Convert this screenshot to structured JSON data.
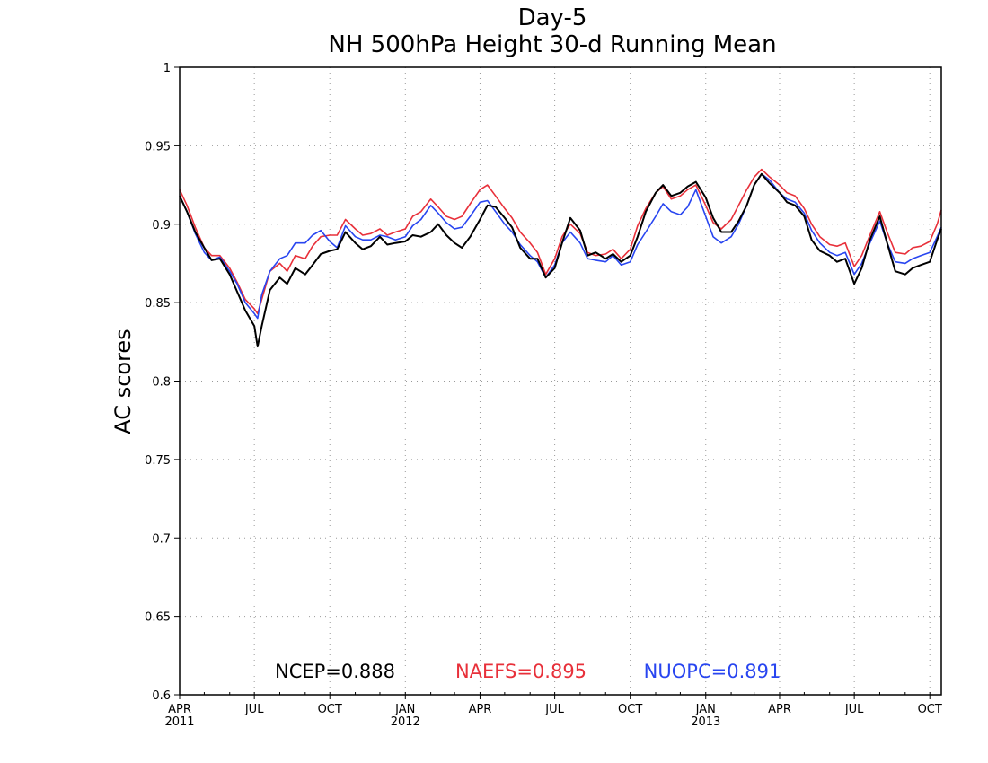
{
  "chart_data": {
    "type": "line",
    "title": "Day-5",
    "subtitle": "NH 500hPa Height 30-d Running Mean",
    "ylabel": "AC scores",
    "xlabel": "",
    "ylim": [
      0.6,
      1.0
    ],
    "xlim": [
      "2011-04-01",
      "2013-10-15"
    ],
    "grid": true,
    "yticks": [
      {
        "value": 0.6,
        "label": "0.6"
      },
      {
        "value": 0.65,
        "label": "0.65"
      },
      {
        "value": 0.7,
        "label": "0.7"
      },
      {
        "value": 0.75,
        "label": "0.75"
      },
      {
        "value": 0.8,
        "label": "0.8"
      },
      {
        "value": 0.85,
        "label": "0.85"
      },
      {
        "value": 0.9,
        "label": "0.9"
      },
      {
        "value": 0.95,
        "label": "0.95"
      },
      {
        "value": 1.0,
        "label": "1"
      }
    ],
    "xticks": [
      {
        "date": "2011-04-01",
        "label": "APR",
        "year": "2011"
      },
      {
        "date": "2011-07-01",
        "label": "JUL",
        "year": ""
      },
      {
        "date": "2011-10-01",
        "label": "OCT",
        "year": ""
      },
      {
        "date": "2012-01-01",
        "label": "JAN",
        "year": "2012"
      },
      {
        "date": "2012-04-01",
        "label": "APR",
        "year": ""
      },
      {
        "date": "2012-07-01",
        "label": "JUL",
        "year": ""
      },
      {
        "date": "2012-10-01",
        "label": "OCT",
        "year": ""
      },
      {
        "date": "2013-01-01",
        "label": "JAN",
        "year": "2013"
      },
      {
        "date": "2013-04-01",
        "label": "APR",
        "year": ""
      },
      {
        "date": "2013-07-01",
        "label": "JUL",
        "year": ""
      },
      {
        "date": "2013-10-01",
        "label": "OCT",
        "year": ""
      }
    ],
    "legend_placement": "bottom",
    "series": [
      {
        "name": "NCEP",
        "legend_label": "NCEP=0.888",
        "color": "#000000",
        "x": [
          "2011-04-01",
          "2011-04-10",
          "2011-04-20",
          "2011-05-01",
          "2011-05-10",
          "2011-05-20",
          "2011-06-01",
          "2011-06-10",
          "2011-06-20",
          "2011-07-01",
          "2011-07-05",
          "2011-07-10",
          "2011-07-20",
          "2011-08-01",
          "2011-08-10",
          "2011-08-20",
          "2011-09-01",
          "2011-09-10",
          "2011-09-20",
          "2011-10-01",
          "2011-10-10",
          "2011-10-20",
          "2011-11-01",
          "2011-11-10",
          "2011-11-20",
          "2011-12-01",
          "2011-12-10",
          "2011-12-20",
          "2012-01-01",
          "2012-01-10",
          "2012-01-20",
          "2012-02-01",
          "2012-02-10",
          "2012-02-20",
          "2012-03-01",
          "2012-03-10",
          "2012-03-20",
          "2012-04-01",
          "2012-04-10",
          "2012-04-20",
          "2012-05-01",
          "2012-05-10",
          "2012-05-20",
          "2012-06-01",
          "2012-06-10",
          "2012-06-20",
          "2012-07-01",
          "2012-07-10",
          "2012-07-20",
          "2012-08-01",
          "2012-08-10",
          "2012-08-20",
          "2012-09-01",
          "2012-09-10",
          "2012-09-20",
          "2012-10-01",
          "2012-10-10",
          "2012-10-20",
          "2012-11-01",
          "2012-11-10",
          "2012-11-20",
          "2012-12-01",
          "2012-12-10",
          "2012-12-20",
          "2013-01-01",
          "2013-01-10",
          "2013-01-20",
          "2013-02-01",
          "2013-02-10",
          "2013-02-20",
          "2013-03-01",
          "2013-03-10",
          "2013-03-20",
          "2013-04-01",
          "2013-04-10",
          "2013-04-20",
          "2013-05-01",
          "2013-05-10",
          "2013-05-20",
          "2013-06-01",
          "2013-06-10",
          "2013-06-20",
          "2013-07-01",
          "2013-07-10",
          "2013-07-20",
          "2013-08-01",
          "2013-08-10",
          "2013-08-20",
          "2013-09-01",
          "2013-09-10",
          "2013-09-20",
          "2013-10-01",
          "2013-10-10",
          "2013-10-15"
        ],
        "y": [
          0.918,
          0.908,
          0.895,
          0.885,
          0.877,
          0.878,
          0.868,
          0.857,
          0.845,
          0.835,
          0.822,
          0.835,
          0.858,
          0.866,
          0.862,
          0.872,
          0.868,
          0.874,
          0.881,
          0.883,
          0.884,
          0.895,
          0.888,
          0.884,
          0.886,
          0.892,
          0.887,
          0.888,
          0.889,
          0.893,
          0.892,
          0.895,
          0.9,
          0.893,
          0.888,
          0.885,
          0.892,
          0.903,
          0.912,
          0.911,
          0.904,
          0.898,
          0.885,
          0.878,
          0.878,
          0.866,
          0.872,
          0.888,
          0.904,
          0.896,
          0.88,
          0.882,
          0.878,
          0.881,
          0.876,
          0.88,
          0.892,
          0.908,
          0.92,
          0.925,
          0.918,
          0.92,
          0.924,
          0.927,
          0.917,
          0.904,
          0.895,
          0.895,
          0.902,
          0.912,
          0.925,
          0.932,
          0.926,
          0.92,
          0.914,
          0.912,
          0.905,
          0.89,
          0.883,
          0.88,
          0.876,
          0.878,
          0.862,
          0.872,
          0.89,
          0.905,
          0.888,
          0.87,
          0.868,
          0.872,
          0.874,
          0.876,
          0.89,
          0.897
        ]
      },
      {
        "name": "NAEFS",
        "legend_label": "NAEFS=0.895",
        "color": "#e8303a",
        "x": [
          "2011-04-01",
          "2011-04-10",
          "2011-04-20",
          "2011-05-01",
          "2011-05-10",
          "2011-05-20",
          "2011-06-01",
          "2011-06-10",
          "2011-06-20",
          "2011-07-01",
          "2011-07-05",
          "2011-07-10",
          "2011-07-20",
          "2011-08-01",
          "2011-08-10",
          "2011-08-20",
          "2011-09-01",
          "2011-09-10",
          "2011-09-20",
          "2011-10-01",
          "2011-10-10",
          "2011-10-20",
          "2011-11-01",
          "2011-11-10",
          "2011-11-20",
          "2011-12-01",
          "2011-12-10",
          "2011-12-20",
          "2012-01-01",
          "2012-01-10",
          "2012-01-20",
          "2012-02-01",
          "2012-02-10",
          "2012-02-20",
          "2012-03-01",
          "2012-03-10",
          "2012-03-20",
          "2012-04-01",
          "2012-04-10",
          "2012-04-20",
          "2012-05-01",
          "2012-05-10",
          "2012-05-20",
          "2012-06-01",
          "2012-06-10",
          "2012-06-20",
          "2012-07-01",
          "2012-07-10",
          "2012-07-20",
          "2012-08-01",
          "2012-08-10",
          "2012-08-20",
          "2012-09-01",
          "2012-09-10",
          "2012-09-20",
          "2012-10-01",
          "2012-10-10",
          "2012-10-20",
          "2012-11-01",
          "2012-11-10",
          "2012-11-20",
          "2012-12-01",
          "2012-12-10",
          "2012-12-20",
          "2013-01-01",
          "2013-01-10",
          "2013-01-20",
          "2013-02-01",
          "2013-02-10",
          "2013-02-20",
          "2013-03-01",
          "2013-03-10",
          "2013-03-20",
          "2013-04-01",
          "2013-04-10",
          "2013-04-20",
          "2013-05-01",
          "2013-05-10",
          "2013-05-20",
          "2013-06-01",
          "2013-06-10",
          "2013-06-20",
          "2013-07-01",
          "2013-07-10",
          "2013-07-20",
          "2013-08-01",
          "2013-08-10",
          "2013-08-20",
          "2013-09-01",
          "2013-09-10",
          "2013-09-20",
          "2013-10-01",
          "2013-10-10",
          "2013-10-15"
        ],
        "y": [
          0.922,
          0.912,
          0.898,
          0.885,
          0.88,
          0.88,
          0.872,
          0.863,
          0.852,
          0.846,
          0.843,
          0.852,
          0.87,
          0.875,
          0.87,
          0.88,
          0.878,
          0.886,
          0.892,
          0.893,
          0.893,
          0.903,
          0.897,
          0.893,
          0.894,
          0.897,
          0.893,
          0.895,
          0.897,
          0.905,
          0.908,
          0.916,
          0.911,
          0.905,
          0.903,
          0.905,
          0.913,
          0.922,
          0.925,
          0.918,
          0.91,
          0.904,
          0.895,
          0.888,
          0.882,
          0.868,
          0.878,
          0.892,
          0.9,
          0.894,
          0.882,
          0.88,
          0.881,
          0.884,
          0.878,
          0.884,
          0.899,
          0.91,
          0.92,
          0.924,
          0.916,
          0.918,
          0.922,
          0.925,
          0.912,
          0.901,
          0.897,
          0.903,
          0.912,
          0.922,
          0.93,
          0.935,
          0.93,
          0.925,
          0.92,
          0.918,
          0.91,
          0.9,
          0.892,
          0.887,
          0.886,
          0.888,
          0.873,
          0.88,
          0.893,
          0.908,
          0.895,
          0.882,
          0.881,
          0.885,
          0.886,
          0.889,
          0.9,
          0.909
        ]
      },
      {
        "name": "NUOPC",
        "legend_label": "NUOPC=0.891",
        "color": "#2845f0",
        "x": [
          "2011-04-01",
          "2011-04-10",
          "2011-04-20",
          "2011-05-01",
          "2011-05-10",
          "2011-05-20",
          "2011-06-01",
          "2011-06-10",
          "2011-06-20",
          "2011-07-01",
          "2011-07-05",
          "2011-07-10",
          "2011-07-20",
          "2011-08-01",
          "2011-08-10",
          "2011-08-20",
          "2011-09-01",
          "2011-09-10",
          "2011-09-20",
          "2011-10-01",
          "2011-10-10",
          "2011-10-20",
          "2011-11-01",
          "2011-11-10",
          "2011-11-20",
          "2011-12-01",
          "2011-12-10",
          "2011-12-20",
          "2012-01-01",
          "2012-01-10",
          "2012-01-20",
          "2012-02-01",
          "2012-02-10",
          "2012-02-20",
          "2012-03-01",
          "2012-03-10",
          "2012-03-20",
          "2012-04-01",
          "2012-04-10",
          "2012-04-20",
          "2012-05-01",
          "2012-05-10",
          "2012-05-20",
          "2012-06-01",
          "2012-06-10",
          "2012-06-20",
          "2012-07-01",
          "2012-07-10",
          "2012-07-20",
          "2012-08-01",
          "2012-08-10",
          "2012-08-20",
          "2012-09-01",
          "2012-09-10",
          "2012-09-20",
          "2012-10-01",
          "2012-10-10",
          "2012-10-20",
          "2012-11-01",
          "2012-11-10",
          "2012-11-20",
          "2012-12-01",
          "2012-12-10",
          "2012-12-20",
          "2013-01-01",
          "2013-01-10",
          "2013-01-20",
          "2013-02-01",
          "2013-02-10",
          "2013-02-20",
          "2013-03-01",
          "2013-03-10",
          "2013-03-20",
          "2013-04-01",
          "2013-04-10",
          "2013-04-20",
          "2013-05-01",
          "2013-05-10",
          "2013-05-20",
          "2013-06-01",
          "2013-06-10",
          "2013-06-20",
          "2013-07-01",
          "2013-07-10",
          "2013-07-20",
          "2013-08-01",
          "2013-08-10",
          "2013-08-20",
          "2013-09-01",
          "2013-09-10",
          "2013-09-20",
          "2013-10-01",
          "2013-10-10",
          "2013-10-15"
        ],
        "y": [
          0.918,
          0.908,
          0.894,
          0.882,
          0.877,
          0.879,
          0.87,
          0.862,
          0.85,
          0.843,
          0.84,
          0.855,
          0.87,
          0.878,
          0.88,
          0.888,
          0.888,
          0.893,
          0.896,
          0.889,
          0.885,
          0.899,
          0.892,
          0.89,
          0.89,
          0.893,
          0.892,
          0.89,
          0.892,
          0.899,
          0.903,
          0.912,
          0.907,
          0.901,
          0.897,
          0.898,
          0.905,
          0.914,
          0.915,
          0.908,
          0.9,
          0.895,
          0.887,
          0.88,
          0.876,
          0.866,
          0.874,
          0.888,
          0.895,
          0.888,
          0.878,
          0.877,
          0.876,
          0.88,
          0.874,
          0.876,
          0.887,
          0.895,
          0.905,
          0.913,
          0.908,
          0.906,
          0.911,
          0.922,
          0.905,
          0.892,
          0.888,
          0.892,
          0.9,
          0.912,
          0.925,
          0.932,
          0.928,
          0.92,
          0.916,
          0.914,
          0.907,
          0.896,
          0.888,
          0.882,
          0.88,
          0.882,
          0.868,
          0.875,
          0.888,
          0.902,
          0.888,
          0.876,
          0.875,
          0.878,
          0.88,
          0.882,
          0.892,
          0.898
        ]
      }
    ]
  }
}
